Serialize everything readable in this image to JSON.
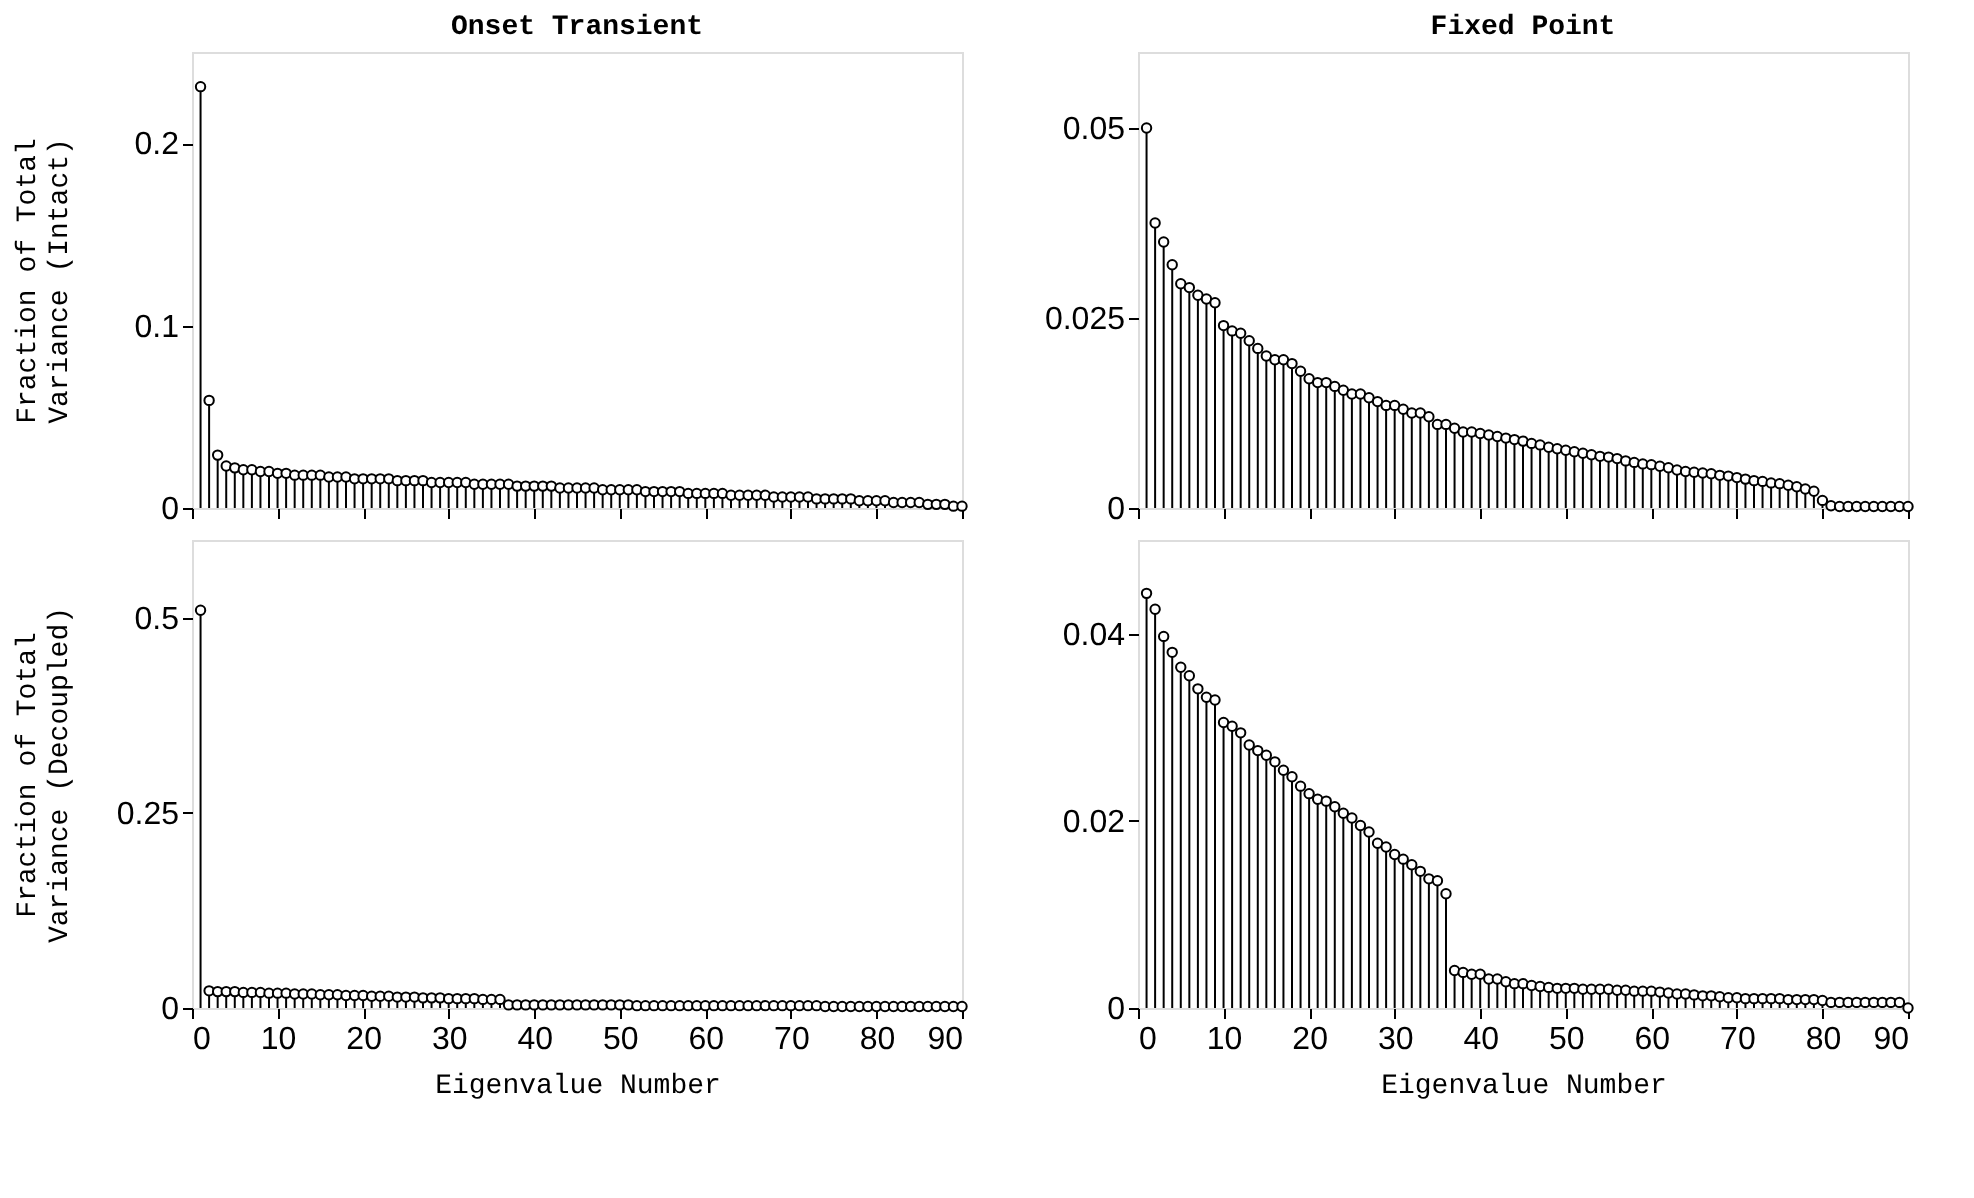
{
  "chart_data": [
    {
      "type": "lollipop",
      "title": "Onset Transient",
      "ylabel": "Fraction of Total\nVariance (Intact)",
      "tick_labels": "y",
      "marker": "circle",
      "color": "#000000",
      "xlim": [
        0,
        90
      ],
      "xticks": [
        0,
        10,
        20,
        30,
        40,
        50,
        60,
        70,
        80,
        90
      ],
      "ylim": [
        0,
        0.25
      ],
      "yticks": [
        0,
        0.1,
        0.2
      ],
      "x": [
        1,
        2,
        3,
        4,
        5,
        6,
        7,
        8,
        9,
        10,
        11,
        12,
        13,
        14,
        15,
        16,
        17,
        18,
        19,
        20,
        21,
        22,
        23,
        24,
        25,
        26,
        27,
        28,
        29,
        30,
        31,
        32,
        33,
        34,
        35,
        36,
        37,
        38,
        39,
        40,
        41,
        42,
        43,
        44,
        45,
        46,
        47,
        48,
        49,
        50,
        51,
        52,
        53,
        54,
        55,
        56,
        57,
        58,
        59,
        60,
        61,
        62,
        63,
        64,
        65,
        66,
        67,
        68,
        69,
        70,
        71,
        72,
        73,
        74,
        75,
        76,
        77,
        78,
        79,
        80,
        81,
        82,
        83,
        84,
        85,
        86,
        87,
        88,
        89,
        90
      ],
      "values": [
        0.231,
        0.059,
        0.029,
        0.023,
        0.022,
        0.021,
        0.021,
        0.02,
        0.02,
        0.019,
        0.019,
        0.018,
        0.018,
        0.018,
        0.018,
        0.017,
        0.017,
        0.017,
        0.016,
        0.016,
        0.016,
        0.016,
        0.016,
        0.015,
        0.015,
        0.015,
        0.015,
        0.014,
        0.014,
        0.014,
        0.014,
        0.014,
        0.013,
        0.013,
        0.013,
        0.013,
        0.013,
        0.012,
        0.012,
        0.012,
        0.012,
        0.012,
        0.011,
        0.011,
        0.011,
        0.011,
        0.011,
        0.01,
        0.01,
        0.01,
        0.01,
        0.01,
        0.009,
        0.009,
        0.009,
        0.009,
        0.009,
        0.008,
        0.008,
        0.008,
        0.008,
        0.008,
        0.007,
        0.007,
        0.007,
        0.007,
        0.007,
        0.006,
        0.006,
        0.006,
        0.006,
        0.006,
        0.005,
        0.005,
        0.005,
        0.005,
        0.005,
        0.004,
        0.004,
        0.004,
        0.004,
        0.003,
        0.003,
        0.003,
        0.003,
        0.002,
        0.002,
        0.002,
        0.001,
        0.001
      ]
    },
    {
      "type": "lollipop",
      "title": "Fixed Point",
      "tick_labels": "y",
      "marker": "circle",
      "color": "#000000",
      "xlim": [
        0,
        90
      ],
      "xticks": [
        0,
        10,
        20,
        30,
        40,
        50,
        60,
        70,
        80,
        90
      ],
      "ylim": [
        0,
        0.06
      ],
      "yticks": [
        0,
        0.025,
        0.05
      ],
      "x": [
        1,
        2,
        3,
        4,
        5,
        6,
        7,
        8,
        9,
        10,
        11,
        12,
        13,
        14,
        15,
        16,
        17,
        18,
        19,
        20,
        21,
        22,
        23,
        24,
        25,
        26,
        27,
        28,
        29,
        30,
        31,
        32,
        33,
        34,
        35,
        36,
        37,
        38,
        39,
        40,
        41,
        42,
        43,
        44,
        45,
        46,
        47,
        48,
        49,
        50,
        51,
        52,
        53,
        54,
        55,
        56,
        57,
        58,
        59,
        60,
        61,
        62,
        63,
        64,
        65,
        66,
        67,
        68,
        69,
        70,
        71,
        72,
        73,
        74,
        75,
        76,
        77,
        78,
        79,
        80,
        81,
        82,
        83,
        84,
        85,
        86,
        87,
        88,
        89,
        90
      ],
      "values": [
        0.05,
        0.0375,
        0.035,
        0.032,
        0.0295,
        0.029,
        0.028,
        0.0275,
        0.027,
        0.024,
        0.0233,
        0.023,
        0.022,
        0.021,
        0.02,
        0.0195,
        0.0195,
        0.019,
        0.018,
        0.017,
        0.0165,
        0.0165,
        0.016,
        0.0155,
        0.015,
        0.015,
        0.0145,
        0.014,
        0.0135,
        0.0135,
        0.013,
        0.0125,
        0.0125,
        0.012,
        0.011,
        0.011,
        0.0105,
        0.01,
        0.01,
        0.0098,
        0.0096,
        0.0094,
        0.0092,
        0.009,
        0.0088,
        0.0085,
        0.0083,
        0.008,
        0.0078,
        0.0076,
        0.0074,
        0.0072,
        0.007,
        0.0068,
        0.0067,
        0.0065,
        0.0062,
        0.006,
        0.0058,
        0.0057,
        0.0055,
        0.0053,
        0.005,
        0.0048,
        0.0047,
        0.0046,
        0.0045,
        0.0043,
        0.0042,
        0.004,
        0.0038,
        0.0036,
        0.0035,
        0.0033,
        0.0032,
        0.003,
        0.0028,
        0.0025,
        0.0022,
        0.001,
        0.0003,
        0.0002,
        0.0002,
        0.0002,
        0.0002,
        0.0002,
        0.0002,
        0.0002,
        0.0002,
        0.0002
      ]
    },
    {
      "type": "lollipop",
      "xlabel": "Eigenvalue Number",
      "ylabel": "Fraction of Total\nVariance (Decoupled)",
      "marker": "circle",
      "color": "#000000",
      "xlim": [
        0,
        90
      ],
      "xticks": [
        0,
        10,
        20,
        30,
        40,
        50,
        60,
        70,
        80,
        90
      ],
      "ylim": [
        0,
        0.6
      ],
      "yticks": [
        0,
        0.25,
        0.5
      ],
      "x": [
        1,
        2,
        3,
        4,
        5,
        6,
        7,
        8,
        9,
        10,
        11,
        12,
        13,
        14,
        15,
        16,
        17,
        18,
        19,
        20,
        21,
        22,
        23,
        24,
        25,
        26,
        27,
        28,
        29,
        30,
        31,
        32,
        33,
        34,
        35,
        36,
        37,
        38,
        39,
        40,
        41,
        42,
        43,
        44,
        45,
        46,
        47,
        48,
        49,
        50,
        51,
        52,
        53,
        54,
        55,
        56,
        57,
        58,
        59,
        60,
        61,
        62,
        63,
        64,
        65,
        66,
        67,
        68,
        69,
        70,
        71,
        72,
        73,
        74,
        75,
        76,
        77,
        78,
        79,
        80,
        81,
        82,
        83,
        84,
        85,
        86,
        87,
        88,
        89,
        90
      ],
      "values": [
        0.51,
        0.022,
        0.021,
        0.021,
        0.021,
        0.02,
        0.02,
        0.02,
        0.019,
        0.019,
        0.019,
        0.018,
        0.018,
        0.018,
        0.017,
        0.017,
        0.017,
        0.016,
        0.016,
        0.016,
        0.015,
        0.015,
        0.015,
        0.014,
        0.014,
        0.014,
        0.013,
        0.013,
        0.013,
        0.012,
        0.012,
        0.012,
        0.012,
        0.011,
        0.011,
        0.011,
        0.004,
        0.004,
        0.004,
        0.004,
        0.004,
        0.004,
        0.004,
        0.004,
        0.004,
        0.004,
        0.004,
        0.004,
        0.004,
        0.004,
        0.004,
        0.003,
        0.003,
        0.003,
        0.003,
        0.003,
        0.003,
        0.003,
        0.003,
        0.003,
        0.003,
        0.003,
        0.003,
        0.003,
        0.003,
        0.003,
        0.003,
        0.003,
        0.003,
        0.003,
        0.003,
        0.003,
        0.003,
        0.002,
        0.002,
        0.002,
        0.002,
        0.002,
        0.002,
        0.002,
        0.002,
        0.002,
        0.002,
        0.002,
        0.002,
        0.002,
        0.002,
        0.002,
        0.002,
        0.002
      ]
    },
    {
      "type": "lollipop",
      "xlabel": "Eigenvalue Number",
      "marker": "circle",
      "color": "#000000",
      "xlim": [
        0,
        90
      ],
      "xticks": [
        0,
        10,
        20,
        30,
        40,
        50,
        60,
        70,
        80,
        90
      ],
      "ylim": [
        0,
        0.05
      ],
      "yticks": [
        0,
        0.02,
        0.04
      ],
      "x": [
        1,
        2,
        3,
        4,
        5,
        6,
        7,
        8,
        9,
        10,
        11,
        12,
        13,
        14,
        15,
        16,
        17,
        18,
        19,
        20,
        21,
        22,
        23,
        24,
        25,
        26,
        27,
        28,
        29,
        30,
        31,
        32,
        33,
        34,
        35,
        36,
        37,
        38,
        39,
        40,
        41,
        42,
        43,
        44,
        45,
        46,
        47,
        48,
        49,
        50,
        51,
        52,
        53,
        54,
        55,
        56,
        57,
        58,
        59,
        60,
        61,
        62,
        63,
        64,
        65,
        66,
        67,
        68,
        69,
        70,
        71,
        72,
        73,
        74,
        75,
        76,
        77,
        78,
        79,
        80,
        81,
        82,
        83,
        84,
        85,
        86,
        87,
        88,
        89,
        90
      ],
      "values": [
        0.0443,
        0.0426,
        0.0397,
        0.038,
        0.0364,
        0.0355,
        0.0341,
        0.0332,
        0.0329,
        0.0305,
        0.0301,
        0.0294,
        0.0281,
        0.0275,
        0.027,
        0.0263,
        0.0254,
        0.0247,
        0.0237,
        0.0229,
        0.0223,
        0.0221,
        0.0215,
        0.0208,
        0.0203,
        0.0195,
        0.0188,
        0.0176,
        0.0172,
        0.0164,
        0.0159,
        0.0153,
        0.0146,
        0.0138,
        0.0136,
        0.0122,
        0.004,
        0.0038,
        0.0036,
        0.0036,
        0.0031,
        0.0031,
        0.0028,
        0.0026,
        0.0026,
        0.0024,
        0.0023,
        0.0022,
        0.0021,
        0.0021,
        0.0021,
        0.002,
        0.002,
        0.002,
        0.002,
        0.0019,
        0.0019,
        0.0018,
        0.0018,
        0.0018,
        0.0017,
        0.0016,
        0.0015,
        0.0015,
        0.0014,
        0.0013,
        0.0013,
        0.0012,
        0.0011,
        0.0011,
        0.001,
        0.001,
        0.001,
        0.001,
        0.001,
        0.0009,
        0.0009,
        0.0009,
        0.0009,
        0.0008,
        0.0006,
        0.0006,
        0.0006,
        0.0006,
        0.0006,
        0.0006,
        0.0006,
        0.0006,
        0.0006,
        0
      ]
    }
  ]
}
